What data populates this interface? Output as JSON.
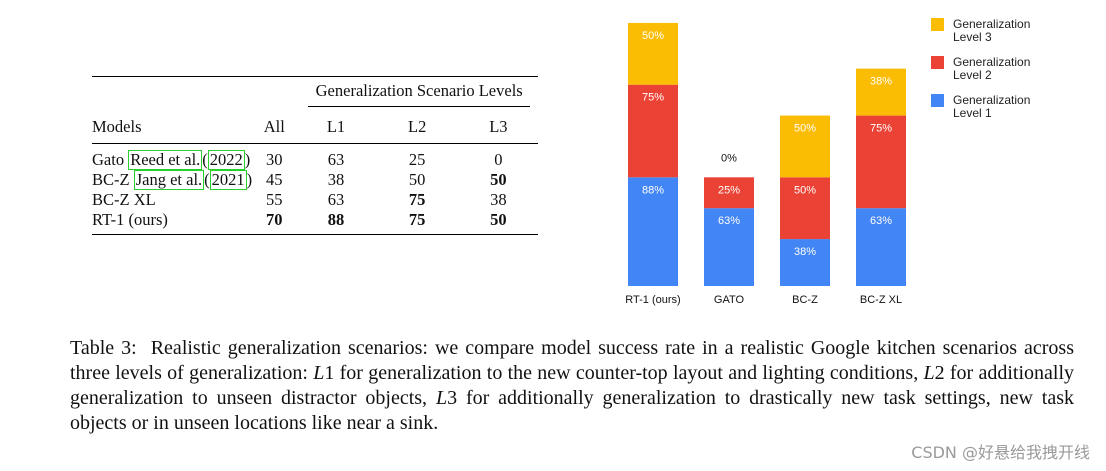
{
  "table": {
    "group_header": "Generalization Scenario Levels",
    "columns": [
      "Models",
      "All",
      "L1",
      "L2",
      "L3"
    ],
    "rows": [
      {
        "model_prefix": "Gato ",
        "cite_author": "Reed et al.",
        "cite_year": "2022",
        "model_suffix": ")",
        "all": "30",
        "l1": "63",
        "l2": "25",
        "l3": "0"
      },
      {
        "model_prefix": "BC-Z ",
        "cite_author": "Jang et al.",
        "cite_year": "2021",
        "model_suffix": ")",
        "all": "45",
        "l1": "38",
        "l2": "50",
        "l3": "50"
      },
      {
        "model": "BC-Z XL",
        "all": "55",
        "l1": "63",
        "l2": "75",
        "l3": "38"
      },
      {
        "model": "RT-1 (ours)",
        "all": "70",
        "l1": "88",
        "l2": "75",
        "l3": "50"
      }
    ]
  },
  "chart_data": {
    "type": "bar",
    "stacked": true,
    "categories": [
      "RT-1 (ours)",
      "GATO",
      "BC-Z",
      "BC-Z XL"
    ],
    "series": [
      {
        "name": "Generalization Level 1",
        "color": "#4285f4",
        "values": [
          88,
          63,
          38,
          63
        ],
        "labels": [
          "88%",
          "63%",
          "38%",
          "63%"
        ]
      },
      {
        "name": "Generalization Level 2",
        "color": "#ea4335",
        "values": [
          75,
          25,
          50,
          75
        ],
        "labels": [
          "75%",
          "25%",
          "50%",
          "75%"
        ]
      },
      {
        "name": "Generalization Level 3",
        "color": "#fbbc04",
        "values": [
          50,
          0,
          50,
          38
        ],
        "labels": [
          "50%",
          "0%",
          "50%",
          "38%"
        ]
      }
    ],
    "legend": [
      {
        "line1": "Generalization",
        "line2": "Level 3",
        "color": "#fbbc04"
      },
      {
        "line1": "Generalization",
        "line2": "Level 2",
        "color": "#ea4335"
      },
      {
        "line1": "Generalization",
        "line2": "Level 1",
        "color": "#4285f4"
      }
    ],
    "legend_position": "top-right",
    "grid": false
  },
  "caption": {
    "label": "Table 3:",
    "t1": "Realistic generalization scenarios: we compare model success rate in a realistic Google kitchen scenarios across three levels of generalization: ",
    "L1": "L",
    "n1": "1",
    "t2": " for generalization to the new counter-top layout and lighting conditions, ",
    "L2": "L",
    "n2": "2",
    "t3": " for additionally generalization to unseen distractor objects, ",
    "L3": "L",
    "n3": "3",
    "t4": " for additionally generalization to drastically new task settings, new task objects or in unseen locations like near a sink."
  },
  "watermark": "CSDN @好悬给我拽开线"
}
